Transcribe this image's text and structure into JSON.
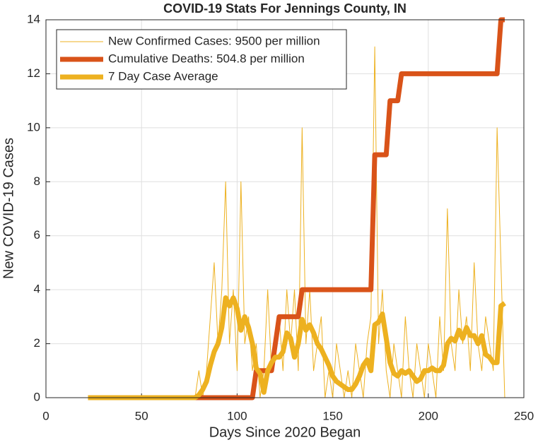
{
  "chart_data": {
    "type": "line",
    "title": "COVID-19 Stats For Jennings County, IN",
    "xlabel": "Days Since 2020 Began",
    "ylabel": "New COVID-19 Cases",
    "x": [
      22,
      24,
      26,
      28,
      30,
      32,
      34,
      36,
      38,
      40,
      42,
      44,
      46,
      48,
      50,
      52,
      54,
      56,
      58,
      60,
      62,
      64,
      66,
      68,
      70,
      72,
      74,
      76,
      78,
      80,
      82,
      84,
      86,
      88,
      90,
      92,
      94,
      96,
      98,
      100,
      102,
      104,
      106,
      108,
      110,
      112,
      114,
      116,
      118,
      120,
      122,
      124,
      126,
      128,
      130,
      132,
      134,
      136,
      138,
      140,
      142,
      144,
      146,
      148,
      150,
      152,
      154,
      156,
      158,
      160,
      162,
      164,
      166,
      168,
      170,
      172,
      174,
      176,
      178,
      180,
      182,
      184,
      186,
      188,
      190,
      192,
      194,
      196,
      198,
      200,
      202,
      204,
      206,
      208,
      210,
      212,
      214,
      216,
      218,
      220,
      222,
      224,
      226,
      228,
      230,
      232,
      234,
      236,
      238,
      240
    ],
    "series": [
      {
        "name": "New Confirmed Cases: 9500 per million",
        "color": "#EDB120",
        "values": [
          0,
          0,
          0,
          0,
          0,
          0,
          0,
          0,
          0,
          0,
          0,
          0,
          0,
          0,
          0,
          0,
          0,
          0,
          0,
          0,
          0,
          0,
          0,
          0,
          0,
          0,
          0,
          0,
          0,
          1,
          0,
          1,
          3,
          5,
          2,
          4,
          8,
          2,
          4,
          1,
          8,
          2,
          3,
          1,
          2,
          0,
          1,
          4,
          1,
          2,
          3,
          1,
          4,
          2,
          4,
          1,
          10,
          2,
          4,
          1,
          2,
          3,
          0,
          1,
          0,
          2,
          1,
          0,
          1,
          0,
          2,
          1,
          0,
          2,
          3,
          13,
          2,
          4,
          1,
          0,
          2,
          1,
          0,
          3,
          1,
          0,
          2,
          1,
          0,
          2,
          1,
          0,
          3,
          1,
          7,
          2,
          1,
          4,
          2,
          3,
          1,
          5,
          2,
          1,
          3,
          2,
          1,
          10,
          5,
          0
        ]
      },
      {
        "name": "Cumulative Deaths: 504.8 per million",
        "color": "#D95319",
        "values": [
          0,
          0,
          0,
          0,
          0,
          0,
          0,
          0,
          0,
          0,
          0,
          0,
          0,
          0,
          0,
          0,
          0,
          0,
          0,
          0,
          0,
          0,
          0,
          0,
          0,
          0,
          0,
          0,
          0,
          0,
          0,
          0,
          0,
          0,
          0,
          0,
          0,
          0,
          0,
          0,
          0,
          0,
          0,
          0,
          1,
          1,
          1,
          1,
          1,
          2,
          3,
          3,
          3,
          3,
          3,
          3,
          4,
          4,
          4,
          4,
          4,
          4,
          4,
          4,
          4,
          4,
          4,
          4,
          4,
          4,
          4,
          4,
          4,
          4,
          4,
          9,
          9,
          9,
          9,
          11,
          11,
          11,
          12,
          12,
          12,
          12,
          12,
          12,
          12,
          12,
          12,
          12,
          12,
          12,
          12,
          12,
          12,
          12,
          12,
          12,
          12,
          12,
          12,
          12,
          12,
          12,
          12,
          12,
          14,
          14
        ]
      },
      {
        "name": "7 Day Case Average",
        "color": "#EDB120",
        "values": [
          0,
          0,
          0,
          0,
          0,
          0,
          0,
          0,
          0,
          0,
          0,
          0,
          0,
          0,
          0,
          0,
          0,
          0,
          0,
          0,
          0,
          0,
          0,
          0,
          0,
          0,
          0,
          0,
          0,
          0.1,
          0.3,
          0.6,
          1.2,
          1.7,
          2,
          2.6,
          3.7,
          3.4,
          3.7,
          3.3,
          2.5,
          3,
          2.6,
          2,
          1.1,
          0.9,
          0.2,
          1,
          1.3,
          1.5,
          1.5,
          1.7,
          2.4,
          2.2,
          1.5,
          2,
          2.9,
          2.5,
          2.7,
          2.4,
          2,
          1.8,
          1.5,
          1.2,
          0.8,
          0.6,
          0.5,
          0.4,
          0.3,
          0.3,
          0.5,
          0.8,
          1.2,
          1.4,
          1,
          2.7,
          2.8,
          3.1,
          2.2,
          1.3,
          0.9,
          0.8,
          1,
          0.9,
          1,
          0.8,
          0.6,
          0.7,
          1,
          1,
          1.1,
          1,
          1,
          1.2,
          2,
          2.2,
          2.1,
          2.5,
          2.2,
          2.6,
          2.3,
          2.3,
          2,
          2.3,
          1.6,
          1.5,
          1.3,
          1.3,
          3.4,
          3.5
        ]
      }
    ],
    "xlim": [
      0,
      250
    ],
    "xticks": [
      0,
      50,
      100,
      150,
      200,
      250
    ],
    "ylim": [
      0,
      14
    ],
    "yticks": [
      0,
      2,
      4,
      6,
      8,
      10,
      12,
      14
    ],
    "grid": true,
    "legend": "upper left"
  }
}
